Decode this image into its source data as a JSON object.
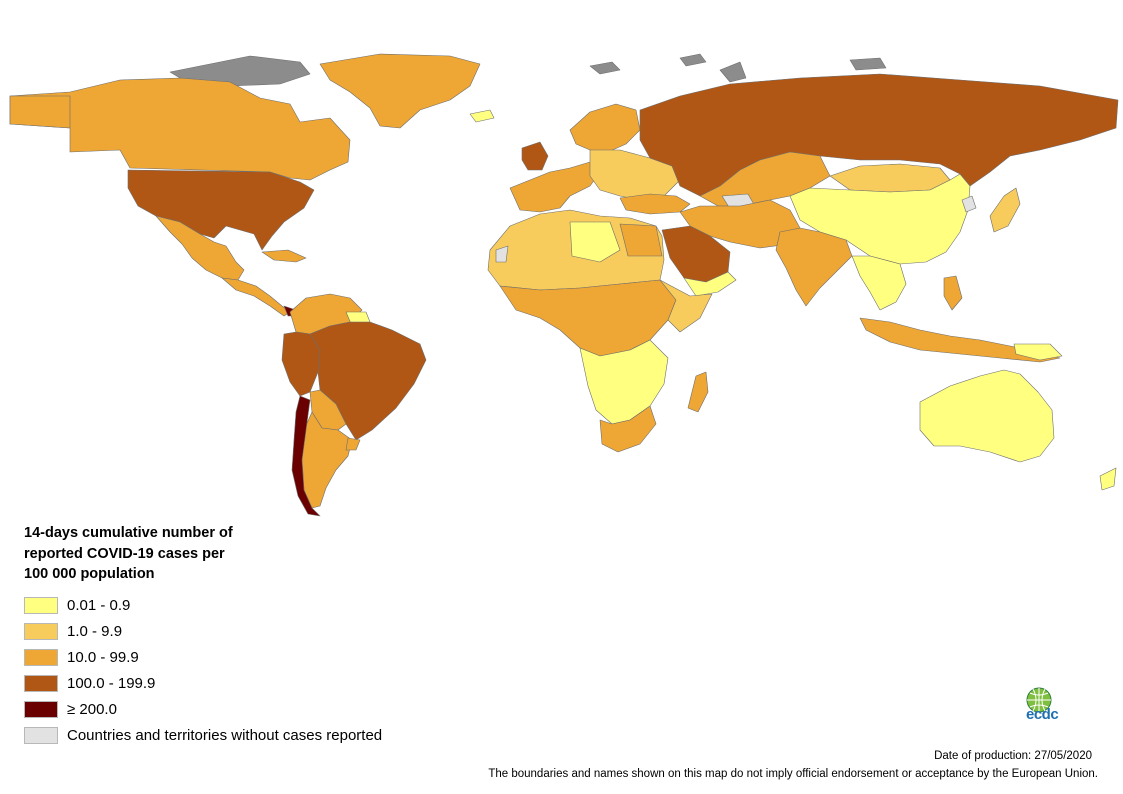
{
  "legend": {
    "title_lines": [
      "14-days cumulative number of",
      "reported COVID-19 cases per",
      "100 000 population"
    ],
    "classes": [
      {
        "label": "0.01 - 0.9",
        "color": "#ffff80"
      },
      {
        "label": "1.0 - 9.9",
        "color": "#f7cc5c"
      },
      {
        "label": "10.0 - 99.9",
        "color": "#eea634"
      },
      {
        "label": "100.0 - 199.9",
        "color": "#b05716"
      },
      {
        "label": "≥ 200.0",
        "color": "#6b0000"
      },
      {
        "label": "Countries and territories without cases reported",
        "color": "#e2e2e2"
      }
    ]
  },
  "colors": {
    "no_data": "#8c8c8c",
    "border": "#6e6e6e",
    "ocean": "#ffffff"
  },
  "logo": {
    "icon": "globe-icon",
    "text": "ecdc"
  },
  "footer": {
    "date": "Date of production: 27/05/2020",
    "disclaimer": "The boundaries and names shown on this map do not imply official endorsement or acceptance by the European Union."
  }
}
